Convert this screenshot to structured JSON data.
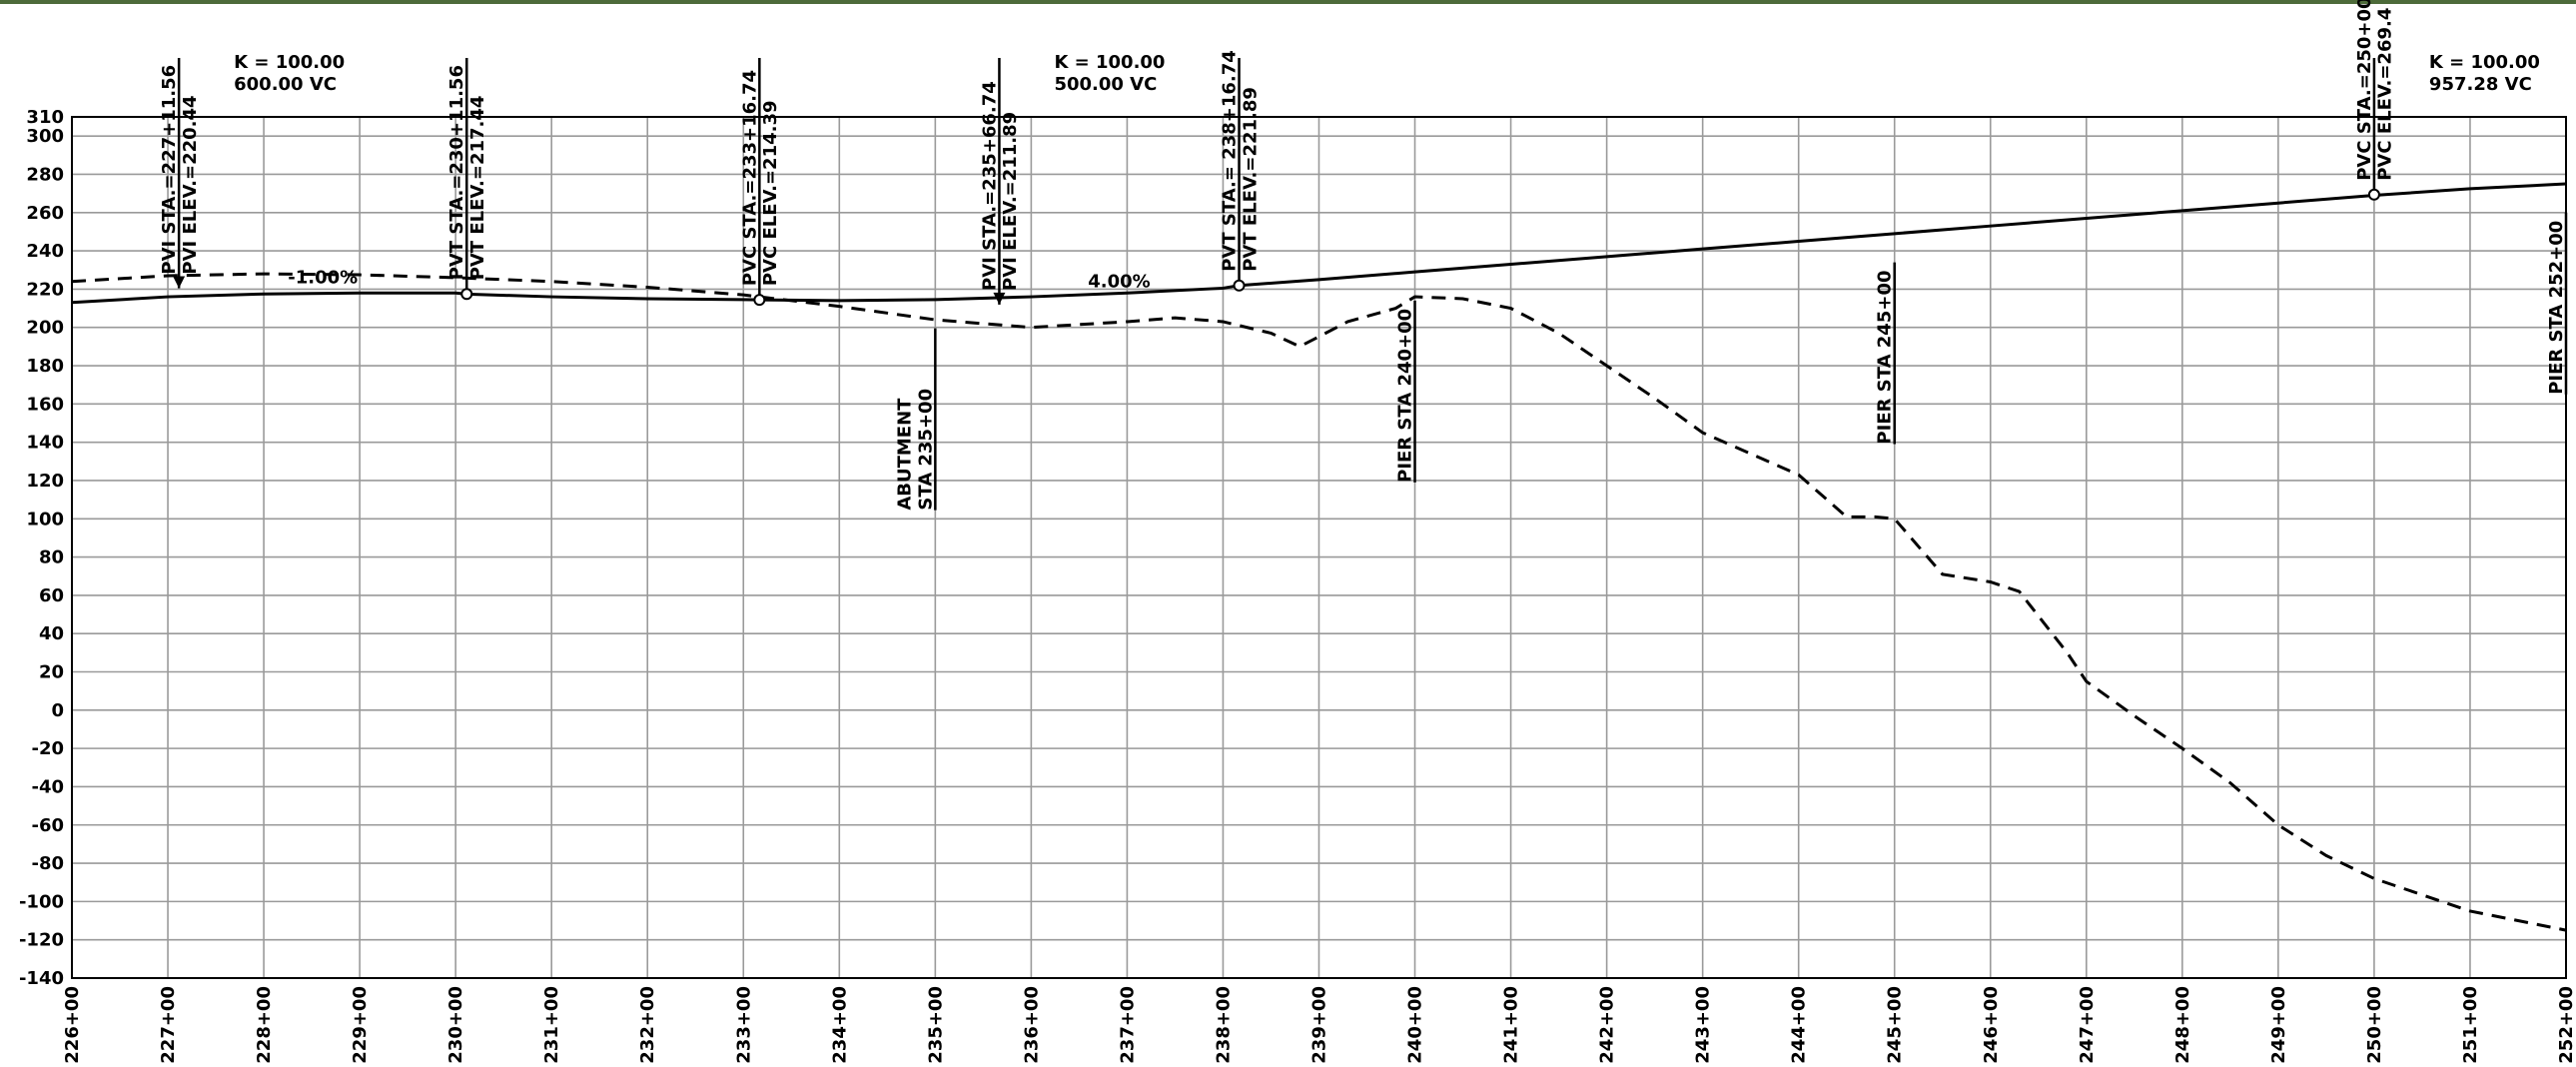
{
  "chart_data": {
    "type": "line",
    "xticks": [
      {
        "value": 226,
        "label": "226+00"
      },
      {
        "value": 227,
        "label": "227+00"
      },
      {
        "value": 228,
        "label": "228+00"
      },
      {
        "value": 229,
        "label": "229+00"
      },
      {
        "value": 230,
        "label": "230+00"
      },
      {
        "value": 231,
        "label": "231+00"
      },
      {
        "value": 232,
        "label": "232+00"
      },
      {
        "value": 233,
        "label": "233+00"
      },
      {
        "value": 234,
        "label": "234+00"
      },
      {
        "value": 235,
        "label": "235+00"
      },
      {
        "value": 236,
        "label": "236+00"
      },
      {
        "value": 237,
        "label": "237+00"
      },
      {
        "value": 238,
        "label": "238+00"
      },
      {
        "value": 239,
        "label": "239+00"
      },
      {
        "value": 240,
        "label": "240+00"
      },
      {
        "value": 241,
        "label": "241+00"
      },
      {
        "value": 242,
        "label": "242+00"
      },
      {
        "value": 243,
        "label": "243+00"
      },
      {
        "value": 244,
        "label": "244+00"
      },
      {
        "value": 245,
        "label": "245+00"
      },
      {
        "value": 246,
        "label": "246+00"
      },
      {
        "value": 247,
        "label": "247+00"
      },
      {
        "value": 248,
        "label": "248+00"
      },
      {
        "value": 249,
        "label": "249+00"
      },
      {
        "value": 250,
        "label": "250+00"
      },
      {
        "value": 251,
        "label": "251+00"
      },
      {
        "value": 252,
        "label": "252+00"
      }
    ],
    "xlim": [
      226,
      252
    ],
    "ylim": [
      -140,
      310
    ],
    "yticks": [
      310,
      300,
      280,
      260,
      240,
      220,
      200,
      180,
      160,
      140,
      120,
      100,
      80,
      60,
      40,
      20,
      0,
      -20,
      -40,
      -60,
      -80,
      -100,
      -120,
      -140
    ],
    "grid": true,
    "series": [
      {
        "color": "#000000",
        "style": "solid",
        "x": [
          226,
          227,
          228,
          229,
          230,
          230.1156,
          231,
          232,
          233,
          234,
          235,
          235.6674,
          236,
          237,
          238,
          238.1674,
          239,
          240,
          241,
          242,
          243,
          244,
          245,
          246,
          247,
          248,
          249,
          250,
          251,
          252
        ],
        "values": [
          213,
          216,
          217.5,
          218,
          218,
          217.4,
          216,
          215,
          214.5,
          214,
          214.5,
          215.5,
          216,
          218,
          220.5,
          221.9,
          225,
          229,
          233,
          237,
          241,
          245,
          249,
          253,
          257,
          261,
          265,
          269,
          272.5,
          275
        ]
      },
      {
        "color": "#000000",
        "style": "dashed",
        "x": [
          226,
          227,
          228,
          229,
          230,
          231,
          232,
          233,
          234,
          235,
          236,
          237,
          237.5,
          238,
          238.5,
          238.8,
          239.3,
          239.8,
          240,
          240.5,
          241,
          241.5,
          242,
          242.5,
          243,
          244,
          244.5,
          244.8,
          245,
          245.5,
          246,
          246.3,
          246.8,
          247,
          247.5,
          248,
          248.5,
          249,
          249.5,
          250,
          251,
          252
        ],
        "values": [
          224,
          227,
          228,
          227.5,
          226,
          224,
          221,
          217,
          211,
          204,
          200,
          203,
          205,
          203,
          197,
          190,
          203,
          210,
          216,
          215,
          210,
          197,
          180,
          163,
          145,
          123,
          101,
          101,
          100,
          71,
          67,
          62,
          30,
          15,
          -3,
          -20,
          -38,
          -60,
          -76,
          -88,
          -105,
          -115
        ]
      }
    ],
    "vertical_points": [
      {
        "sta_label": "PVI STA.=227+11.56",
        "elev_label": "PVI ELEV.=220.44",
        "x": 227.1156,
        "y": 220.44,
        "marker": "arrow",
        "curve": [
          "K = 100.00",
          "600.00  VC"
        ]
      },
      {
        "sta_label": "PVT STA.=230+11.56",
        "elev_label": "PVT ELEV.=217.44",
        "x": 230.1156,
        "y": 217.44,
        "marker": "circle"
      },
      {
        "sta_label": "PVC STA.=233+16.74",
        "elev_label": "PVC ELEV.=214.39",
        "x": 233.1674,
        "y": 214.39,
        "marker": "circle"
      },
      {
        "sta_label": "PVI STA.=235+66.74",
        "elev_label": "PVI ELEV.=211.89",
        "x": 235.6674,
        "y": 211.89,
        "marker": "arrow",
        "curve": [
          "K = 100.00",
          "500.00  VC"
        ]
      },
      {
        "sta_label": "PVT STA.= 238+16.74",
        "elev_label": "PVT ELEV.=221.89",
        "x": 238.1674,
        "y": 221.89,
        "marker": "circle"
      },
      {
        "sta_label": "PVC STA.=250+00",
        "elev_label": "PVC ELEV.=269.4",
        "x": 250,
        "y": 269.4,
        "marker": "circle",
        "curve": [
          "K = 100.00",
          "957.28  VC"
        ]
      }
    ],
    "grades": [
      {
        "label": "-1.00%",
        "value": -1
      },
      {
        "label": "4.00%",
        "value": 4
      }
    ],
    "piers": [
      {
        "labels": [
          "ABUTMENT",
          "STA 235+00"
        ],
        "x": 235
      },
      {
        "labels": [
          "PIER STA 240+00"
        ],
        "x": 240
      },
      {
        "labels": [
          "PIER STA 245+00"
        ],
        "x": 245
      },
      {
        "labels": [
          "PIER STA 252+00"
        ],
        "x": 252
      }
    ]
  }
}
